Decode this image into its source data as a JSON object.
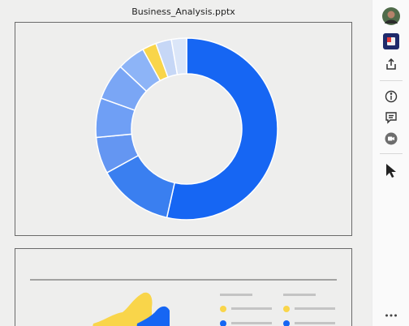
{
  "document": {
    "title": "Business_Analysis.pptx"
  },
  "slides": [
    {
      "label": "slide-1"
    },
    {
      "label": "slide-2"
    }
  ],
  "chart_data": [
    {
      "type": "pie",
      "title": "",
      "donut": true,
      "slices": [
        {
          "value": 53.5,
          "color": "#1666f3"
        },
        {
          "value": 13.5,
          "color": "#3a7ff0"
        },
        {
          "value": 6.5,
          "color": "#6496f2"
        },
        {
          "value": 7.0,
          "color": "#6f9ff5"
        },
        {
          "value": 6.5,
          "color": "#7aa6f5"
        },
        {
          "value": 5.0,
          "color": "#8db4f7"
        },
        {
          "value": 2.5,
          "color": "#f9d54a"
        },
        {
          "value": 2.8,
          "color": "#c6d7f6"
        },
        {
          "value": 2.7,
          "color": "#dbe6f8"
        }
      ]
    }
  ],
  "colors": {
    "accent": "#1666f3",
    "yellow": "#f9d54a",
    "slide_border": "#6b6b6b"
  },
  "rail": {
    "icons": [
      "avatar",
      "dropbox-icon",
      "share-icon",
      "info-icon",
      "comment-icon",
      "video-icon",
      "pointer-icon",
      "more-icon"
    ]
  }
}
